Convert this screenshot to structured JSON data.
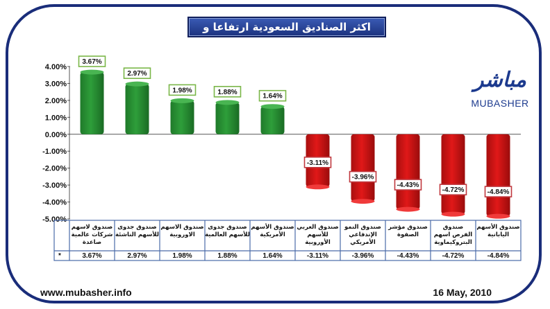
{
  "title": "اكثر الصناديق السعودية ارتفاعا و تراجعا",
  "logo": {
    "arabic": "مباشر",
    "english": "MUBASHER"
  },
  "footer": {
    "url": "www.mubasher.info",
    "date": "16 May, 2010"
  },
  "legend_marker": "*",
  "colors": {
    "positive": "#2e9e3a",
    "negative": "#e01818",
    "frame": "#1a2d7a",
    "positive_label_border": "#7ab648",
    "negative_label_border": "#c0383e"
  },
  "chart_data": {
    "type": "bar",
    "categories": [
      [
        "صندوق لاسهم",
        "شركات عالمية",
        "صاعدة"
      ],
      [
        "صندوق جدوى",
        "للأسهم الناشئة"
      ],
      [
        "صندوق الاسهم",
        "الاوروبية"
      ],
      [
        "صندوق جدوى",
        "للأسهم العالمية"
      ],
      [
        "صندوق الأسهم",
        "الأمريكية"
      ],
      [
        "صندوق العربي",
        "للأسهم",
        "الأوروبية"
      ],
      [
        "صندوق النمو",
        "الإندفاعي",
        "الأمريكي"
      ],
      [
        "صندوق مؤشر",
        "الصفوة"
      ],
      [
        "صندوق",
        "الفرص اسهم",
        "البتروكيماوية"
      ],
      [
        "صندوق الأسهم",
        "اليابانية"
      ]
    ],
    "values": [
      3.67,
      2.97,
      1.98,
      1.88,
      1.64,
      -3.11,
      -3.96,
      -4.43,
      -4.72,
      -4.84
    ],
    "data_labels": [
      "3.67%",
      "2.97%",
      "1.98%",
      "1.88%",
      "1.64%",
      "-3.11%",
      "-3.96%",
      "-4.43%",
      "-4.72%",
      "-4.84%"
    ],
    "y_ticks": [
      "4.00%",
      "3.00%",
      "2.00%",
      "1.00%",
      "0.00%",
      "-1.00%",
      "-2.00%",
      "-3.00%",
      "-4.00%",
      "-5.00%"
    ],
    "ylim": [
      -5,
      4
    ],
    "unit": "%"
  }
}
